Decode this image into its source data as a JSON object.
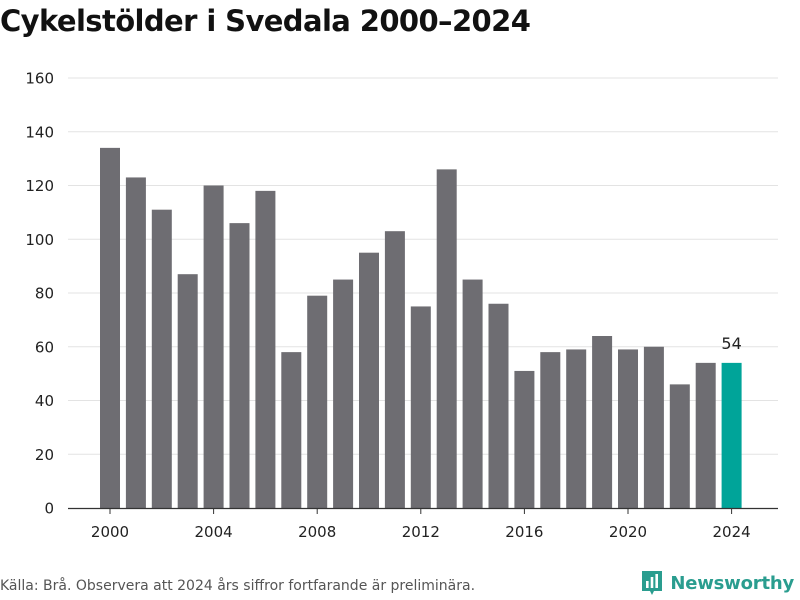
{
  "chart_data": {
    "type": "bar",
    "title": "Cykelstölder i Svedala 2000–2024",
    "xlabel": "",
    "ylabel": "",
    "x": [
      2000,
      2001,
      2002,
      2003,
      2004,
      2005,
      2006,
      2007,
      2008,
      2009,
      2010,
      2011,
      2012,
      2013,
      2014,
      2015,
      2016,
      2017,
      2018,
      2019,
      2020,
      2021,
      2022,
      2023,
      2024
    ],
    "values": [
      134,
      123,
      111,
      87,
      120,
      106,
      118,
      58,
      79,
      85,
      95,
      103,
      75,
      126,
      85,
      76,
      51,
      58,
      59,
      64,
      59,
      60,
      46,
      54,
      54
    ],
    "xticks": [
      "2000",
      "2004",
      "2008",
      "2012",
      "2016",
      "2020",
      "2024"
    ],
    "yticks": [
      "0",
      "20",
      "40",
      "60",
      "80",
      "100",
      "120",
      "140",
      "160"
    ],
    "ylim": [
      0,
      160
    ],
    "grid": true,
    "highlight": {
      "x": 2024,
      "label": "54"
    },
    "colors": {
      "bar": "#6e6d72",
      "highlight": "#00a499",
      "grid": "#e3e3e3",
      "axis": "#333333"
    }
  },
  "footer": {
    "source": "Källa: Brå. Observera att 2024 års siffror fortfarande är preliminära.",
    "logo_text": "Newsworthy",
    "logo_icon": "newsworthy-logo-icon",
    "logo_color": "#2a9d8f"
  }
}
